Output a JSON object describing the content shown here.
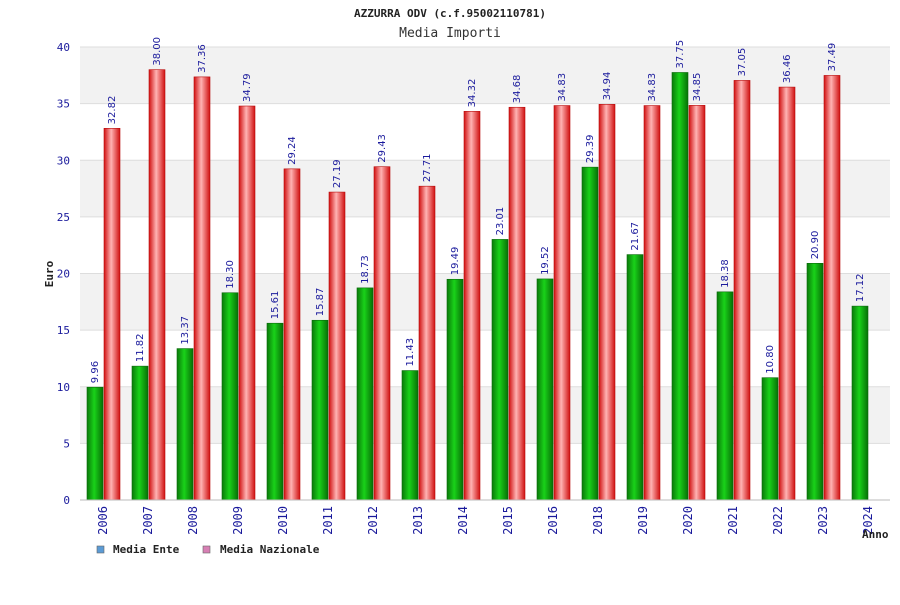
{
  "chart_data": {
    "type": "bar",
    "title": "AZZURRA ODV (c.f.95002110781)",
    "subtitle": "Media Importi",
    "xlabel": "Anno",
    "ylabel": "Euro",
    "ylim": [
      0,
      40
    ],
    "yticks": [
      0,
      5,
      10,
      15,
      20,
      25,
      30,
      35,
      40
    ],
    "grid": true,
    "legend_placement": "bottom-left",
    "categories": [
      "2006",
      "2007",
      "2008",
      "2009",
      "2010",
      "2011",
      "2012",
      "2013",
      "2014",
      "2015",
      "2016",
      "2018",
      "2019",
      "2020",
      "2021",
      "2022",
      "2023",
      "2024"
    ],
    "series": [
      {
        "name": "Media Ente",
        "legend_color": "#5b9bd5",
        "bar_color": "#0a9a0a",
        "values": [
          9.96,
          11.82,
          13.37,
          18.3,
          15.61,
          15.87,
          18.73,
          11.43,
          19.49,
          23.01,
          19.52,
          29.39,
          21.67,
          37.75,
          18.38,
          10.8,
          20.9,
          17.12
        ],
        "labels": [
          "9.96",
          "11.82",
          "13.37",
          "18.30",
          "15.61",
          "15.87",
          "18.73",
          "11.43",
          "19.49",
          "23.01",
          "19.52",
          "29.39",
          "21.67",
          "37.75",
          "18.38",
          "10.80",
          "20.90",
          "17.12"
        ]
      },
      {
        "name": "Media Nazionale",
        "legend_color": "#d77fb4",
        "bar_color": "#e01818",
        "values": [
          32.82,
          38.0,
          37.36,
          34.79,
          29.24,
          27.19,
          29.43,
          27.71,
          34.32,
          34.68,
          34.83,
          34.94,
          34.83,
          34.85,
          37.05,
          36.46,
          37.49,
          null
        ],
        "labels": [
          "32.82",
          "38.00",
          "37.36",
          "34.79",
          "29.24",
          "27.19",
          "29.43",
          "27.71",
          "34.32",
          "34.68",
          "34.83",
          "34.94",
          "34.83",
          "34.85",
          "37.05",
          "36.46",
          "37.49",
          null
        ]
      }
    ]
  }
}
